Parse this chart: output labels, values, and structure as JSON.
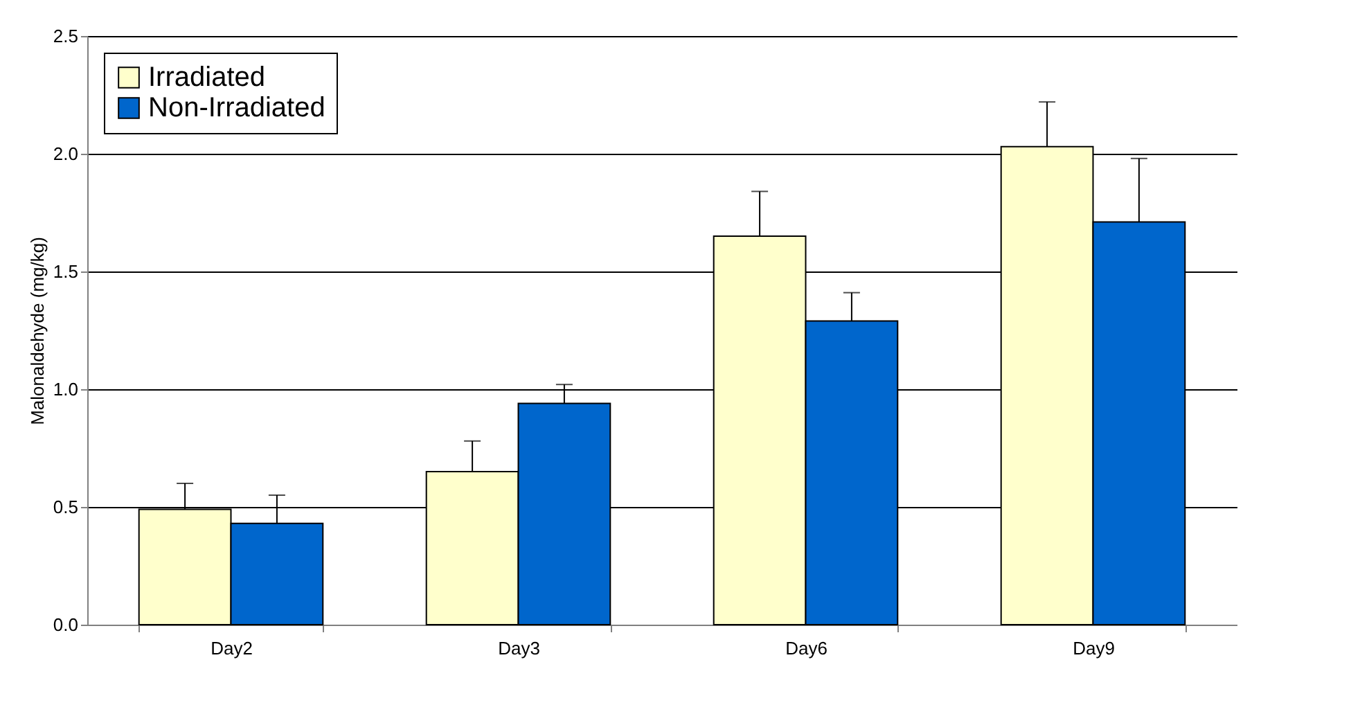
{
  "chart_data": {
    "type": "bar",
    "ylabel": "Malonaldehyde (mg/kg)",
    "categories": [
      "Day2",
      "Day3",
      "Day6",
      "Day9"
    ],
    "series": [
      {
        "name": "Irradiated",
        "color": "#ffffcc",
        "values": [
          0.49,
          0.65,
          1.65,
          2.03
        ],
        "errors": [
          [
            0.49,
            0.6
          ],
          [
            0.65,
            0.78
          ],
          [
            1.65,
            1.84
          ],
          [
            2.03,
            2.22
          ]
        ]
      },
      {
        "name": "Non-Irradiated",
        "color": "#0066cc",
        "values": [
          0.43,
          0.94,
          1.29,
          1.71
        ],
        "errors": [
          [
            0.43,
            0.55
          ],
          [
            0.94,
            1.02
          ],
          [
            1.29,
            1.41
          ],
          [
            1.71,
            1.98
          ]
        ]
      }
    ],
    "ylim": [
      0,
      2.5
    ],
    "yticks": [
      {
        "value": 0,
        "label": "0.0"
      },
      {
        "value": 0.5,
        "label": "0.5"
      },
      {
        "value": 1,
        "label": "1.0"
      },
      {
        "value": 1.5,
        "label": "1.5"
      },
      {
        "value": 2,
        "label": "2.0"
      },
      {
        "value": 2.5,
        "label": "2.5"
      }
    ],
    "grid": "y",
    "legend": "top left"
  }
}
